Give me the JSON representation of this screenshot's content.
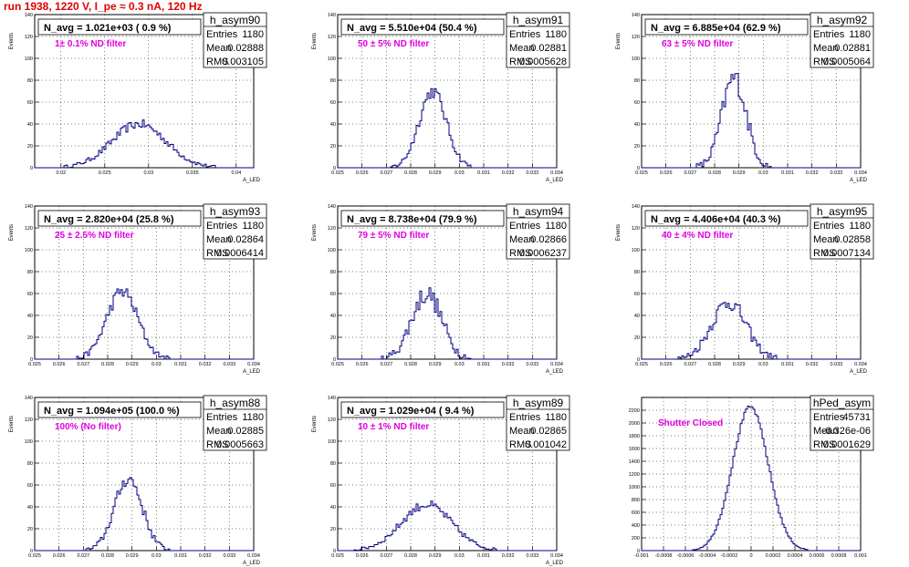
{
  "page": {
    "title": "run 1938,  1220 V, I_pe ≈ 0.3 nA, 120 Hz"
  },
  "colors": {
    "hist": "#00007f",
    "annotation": "#e000e0",
    "grid": "#000000",
    "title": "#e00000"
  },
  "chart_data": [
    {
      "type": "bar",
      "name": "h_asym90",
      "title": "N_avg = 1.021e+03 ( 0.9 %)",
      "annotation": "1± 0.1% ND filter",
      "stats": {
        "entries": "1180",
        "mean": "0.02888",
        "rms": "0.003105"
      },
      "xlabel": "A_LED",
      "ylabel": "Events",
      "xlim": [
        0.017,
        0.042
      ],
      "ylim": [
        0,
        140
      ],
      "xticks": [
        "0.02",
        "0.025",
        "0.03",
        "0.035",
        "0.04"
      ],
      "xtick_vals": [
        0.02,
        0.025,
        0.03,
        0.035,
        0.04
      ],
      "yticks": [
        "0",
        "20",
        "40",
        "60",
        "80",
        "100",
        "120",
        "140"
      ],
      "ytick_vals": [
        0,
        20,
        40,
        60,
        80,
        100,
        120,
        140
      ],
      "gauss": {
        "mu": 0.0289,
        "sigma": 0.0031,
        "amp": 40,
        "noise": 4
      }
    },
    {
      "type": "bar",
      "name": "h_asym91",
      "title": "N_avg = 5.510e+04 (50.4 %)",
      "annotation": "50 ± 5% ND filter",
      "stats": {
        "entries": "1180",
        "mean": "0.02881",
        "rms": "0.0005628"
      },
      "xlabel": "A_LED",
      "ylabel": "Events",
      "xlim": [
        0.025,
        0.034
      ],
      "ylim": [
        0,
        140
      ],
      "xticks": [
        "0.025",
        "0.026",
        "0.027",
        "0.028",
        "0.029",
        "0.03",
        "0.031",
        "0.032",
        "0.033",
        "0.034"
      ],
      "xtick_vals": [
        0.025,
        0.026,
        0.027,
        0.028,
        0.029,
        0.03,
        0.031,
        0.032,
        0.033,
        0.034
      ],
      "yticks": [
        "0",
        "20",
        "40",
        "60",
        "80",
        "100",
        "120",
        "140"
      ],
      "ytick_vals": [
        0,
        20,
        40,
        60,
        80,
        100,
        120,
        140
      ],
      "gauss": {
        "mu": 0.0289,
        "sigma": 0.00056,
        "amp": 70,
        "noise": 6
      }
    },
    {
      "type": "bar",
      "name": "h_asym92",
      "title": "N_avg = 6.885e+04 (62.9 %)",
      "annotation": "63 ± 5% ND filter",
      "stats": {
        "entries": "1180",
        "mean": "0.02881",
        "rms": "0.0005064"
      },
      "xlabel": "A_LED",
      "ylabel": "Events",
      "xlim": [
        0.025,
        0.034
      ],
      "ylim": [
        0,
        140
      ],
      "xticks": [
        "0.025",
        "0.026",
        "0.027",
        "0.028",
        "0.029",
        "0.03",
        "0.031",
        "0.032",
        "0.033",
        "0.034"
      ],
      "xtick_vals": [
        0.025,
        0.026,
        0.027,
        0.028,
        0.029,
        0.03,
        0.031,
        0.032,
        0.033,
        0.034
      ],
      "yticks": [
        "0",
        "20",
        "40",
        "60",
        "80",
        "100",
        "120",
        "140"
      ],
      "ytick_vals": [
        0,
        20,
        40,
        60,
        80,
        100,
        120,
        140
      ],
      "gauss": {
        "mu": 0.0288,
        "sigma": 0.0005,
        "amp": 82,
        "noise": 10
      }
    },
    {
      "type": "bar",
      "name": "h_asym93",
      "title": "N_avg = 2.820e+04 (25.8 %)",
      "annotation": "25 ± 2.5% ND filter",
      "stats": {
        "entries": "1180",
        "mean": "0.02864",
        "rms": "0.0006414"
      },
      "xlabel": "A_LED",
      "ylabel": "Events",
      "xlim": [
        0.025,
        0.034
      ],
      "ylim": [
        0,
        140
      ],
      "xticks": [
        "0.025",
        "0.026",
        "0.027",
        "0.028",
        "0.029",
        "0.03",
        "0.031",
        "0.032",
        "0.033",
        "0.034"
      ],
      "xtick_vals": [
        0.025,
        0.026,
        0.027,
        0.028,
        0.029,
        0.03,
        0.031,
        0.032,
        0.033,
        0.034
      ],
      "yticks": [
        "0",
        "20",
        "40",
        "60",
        "80",
        "100",
        "120",
        "140"
      ],
      "ytick_vals": [
        0,
        20,
        40,
        60,
        80,
        100,
        120,
        140
      ],
      "gauss": {
        "mu": 0.0286,
        "sigma": 0.00064,
        "amp": 62,
        "noise": 6
      }
    },
    {
      "type": "bar",
      "name": "h_asym94",
      "title": "N_avg = 8.738e+04 (79.9 %)",
      "annotation": "79 ± 5% ND filter",
      "stats": {
        "entries": "1180",
        "mean": "0.02866",
        "rms": "0.0006237"
      },
      "xlabel": "A_LED",
      "ylabel": "Events",
      "xlim": [
        0.025,
        0.034
      ],
      "ylim": [
        0,
        140
      ],
      "xticks": [
        "0.025",
        "0.026",
        "0.027",
        "0.028",
        "0.029",
        "0.03",
        "0.031",
        "0.032",
        "0.033",
        "0.034"
      ],
      "xtick_vals": [
        0.025,
        0.026,
        0.027,
        0.028,
        0.029,
        0.03,
        0.031,
        0.032,
        0.033,
        0.034
      ],
      "yticks": [
        "0",
        "20",
        "40",
        "60",
        "80",
        "100",
        "120",
        "140"
      ],
      "ytick_vals": [
        0,
        20,
        40,
        60,
        80,
        100,
        120,
        140
      ],
      "gauss": {
        "mu": 0.02866,
        "sigma": 0.00062,
        "amp": 60,
        "noise": 9
      }
    },
    {
      "type": "bar",
      "name": "h_asym95",
      "title": "N_avg = 4.406e+04 (40.3 %)",
      "annotation": "40 ± 4% ND filter",
      "stats": {
        "entries": "1180",
        "mean": "0.02858",
        "rms": "0.0007134"
      },
      "xlabel": "A_LED",
      "ylabel": "Events",
      "xlim": [
        0.025,
        0.034
      ],
      "ylim": [
        0,
        140
      ],
      "xticks": [
        "0.025",
        "0.026",
        "0.027",
        "0.028",
        "0.029",
        "0.03",
        "0.031",
        "0.032",
        "0.033",
        "0.034"
      ],
      "xtick_vals": [
        0.025,
        0.026,
        0.027,
        0.028,
        0.029,
        0.03,
        0.031,
        0.032,
        0.033,
        0.034
      ],
      "yticks": [
        "0",
        "20",
        "40",
        "60",
        "80",
        "100",
        "120",
        "140"
      ],
      "ytick_vals": [
        0,
        20,
        40,
        60,
        80,
        100,
        120,
        140
      ],
      "gauss": {
        "mu": 0.02858,
        "sigma": 0.00071,
        "amp": 52,
        "noise": 7
      }
    },
    {
      "type": "bar",
      "name": "h_asym88",
      "title": "N_avg = 1.094e+05 (100.0 %)",
      "annotation": "100% (No filter)",
      "stats": {
        "entries": "1180",
        "mean": "0.02885",
        "rms": "0.0005663"
      },
      "xlabel": "A_LED",
      "ylabel": "Events",
      "xlim": [
        0.025,
        0.034
      ],
      "ylim": [
        0,
        140
      ],
      "xticks": [
        "0.025",
        "0.026",
        "0.027",
        "0.028",
        "0.029",
        "0.03",
        "0.031",
        "0.032",
        "0.033",
        "0.034"
      ],
      "xtick_vals": [
        0.025,
        0.026,
        0.027,
        0.028,
        0.029,
        0.03,
        0.031,
        0.032,
        0.033,
        0.034
      ],
      "yticks": [
        "0",
        "20",
        "40",
        "60",
        "80",
        "100",
        "120",
        "140"
      ],
      "ytick_vals": [
        0,
        20,
        40,
        60,
        80,
        100,
        120,
        140
      ],
      "gauss": {
        "mu": 0.02885,
        "sigma": 0.00057,
        "amp": 66,
        "noise": 6
      }
    },
    {
      "type": "bar",
      "name": "h_asym89",
      "title": "N_avg = 1.029e+04 ( 9.4 %)",
      "annotation": "10 ± 1% ND filter",
      "stats": {
        "entries": "1180",
        "mean": "0.02865",
        "rms": "0.001042"
      },
      "xlabel": "A_LED",
      "ylabel": "Events",
      "xlim": [
        0.025,
        0.034
      ],
      "ylim": [
        0,
        140
      ],
      "xticks": [
        "0.025",
        "0.026",
        "0.027",
        "0.028",
        "0.029",
        "0.03",
        "0.031",
        "0.032",
        "0.033",
        "0.034"
      ],
      "xtick_vals": [
        0.025,
        0.026,
        0.027,
        0.028,
        0.029,
        0.03,
        0.031,
        0.032,
        0.033,
        0.034
      ],
      "yticks": [
        "0",
        "20",
        "40",
        "60",
        "80",
        "100",
        "120",
        "140"
      ],
      "ytick_vals": [
        0,
        20,
        40,
        60,
        80,
        100,
        120,
        140
      ],
      "gauss": {
        "mu": 0.02865,
        "sigma": 0.00104,
        "amp": 42,
        "noise": 4
      }
    },
    {
      "type": "bar",
      "name": "hPed_asym",
      "title": "",
      "annotation": "Shutter Closed",
      "stats": {
        "entries": "45731",
        "mean": "-6.326e-06",
        "rms": "0.0001629"
      },
      "xlabel": "",
      "ylabel": "",
      "xlim": [
        -0.001,
        0.001
      ],
      "ylim": [
        0,
        2400
      ],
      "xticks": [
        "-0.001",
        "-0.0008",
        "-0.0006",
        "-0.0004",
        "-0.0002",
        "0",
        "0.0002",
        "0.0004",
        "0.0006",
        "0.0008",
        "0.001"
      ],
      "xtick_vals": [
        -0.001,
        -0.0008,
        -0.0006,
        -0.0004,
        -0.0002,
        0,
        0.0002,
        0.0004,
        0.0006,
        0.0008,
        0.001
      ],
      "yticks": [
        "0",
        "200",
        "400",
        "600",
        "800",
        "1000",
        "1200",
        "1400",
        "1600",
        "1800",
        "2000",
        "2200"
      ],
      "ytick_vals": [
        0,
        200,
        400,
        600,
        800,
        1000,
        1200,
        1400,
        1600,
        1800,
        2000,
        2200
      ],
      "gauss": {
        "mu": -6.3e-06,
        "sigma": 0.000163,
        "amp": 2250,
        "noise": 30
      }
    }
  ],
  "stat_labels": {
    "entries": "Entries",
    "mean": "Mean",
    "rms": "RMS"
  }
}
